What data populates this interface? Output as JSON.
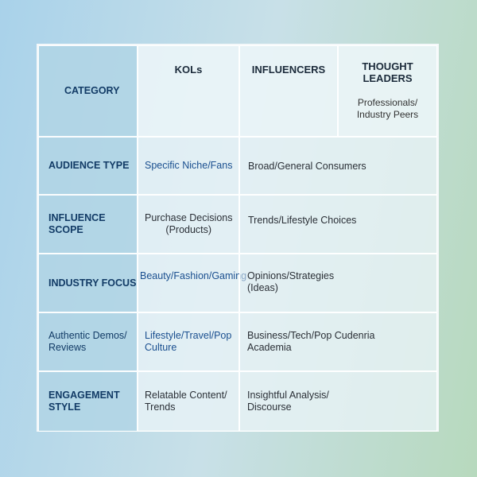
{
  "header": {
    "category": "CATEGORY",
    "kols": "KOLs",
    "influencers": "INFLUENCERS",
    "thought_leaders": "THOUGHT\nLEADERS",
    "thought_leaders_sub": "Professionals/\nIndustry Peers"
  },
  "rows": [
    {
      "category": "AUDIENCE TYPE",
      "kols": "Specific Niche/Fans",
      "influencers": "Broad/General Consumers"
    },
    {
      "category": "INFLUENCE SCOPE",
      "kols": "Purchase Decisions\n(Products)",
      "influencers": "Trends/Lifestyle Choices"
    },
    {
      "category": "INDUSTRY FOCUS",
      "kols": "Beauty/Fashion/Gaming",
      "influencers": "Opinions/Strategies\n(Ideas)"
    },
    {
      "category": "Authentic Demos/\nReviews",
      "kols": "Lifestyle/Travel/Pop\nCulture",
      "influencers": "Business/Tech/Pop Cudenria\nAcademia"
    },
    {
      "category": "ENGAGEMENT\nSTYLE",
      "kols": "Relatable Content/\nTrends",
      "influencers": "Insightful Analysis/\nDiscourse"
    }
  ]
}
